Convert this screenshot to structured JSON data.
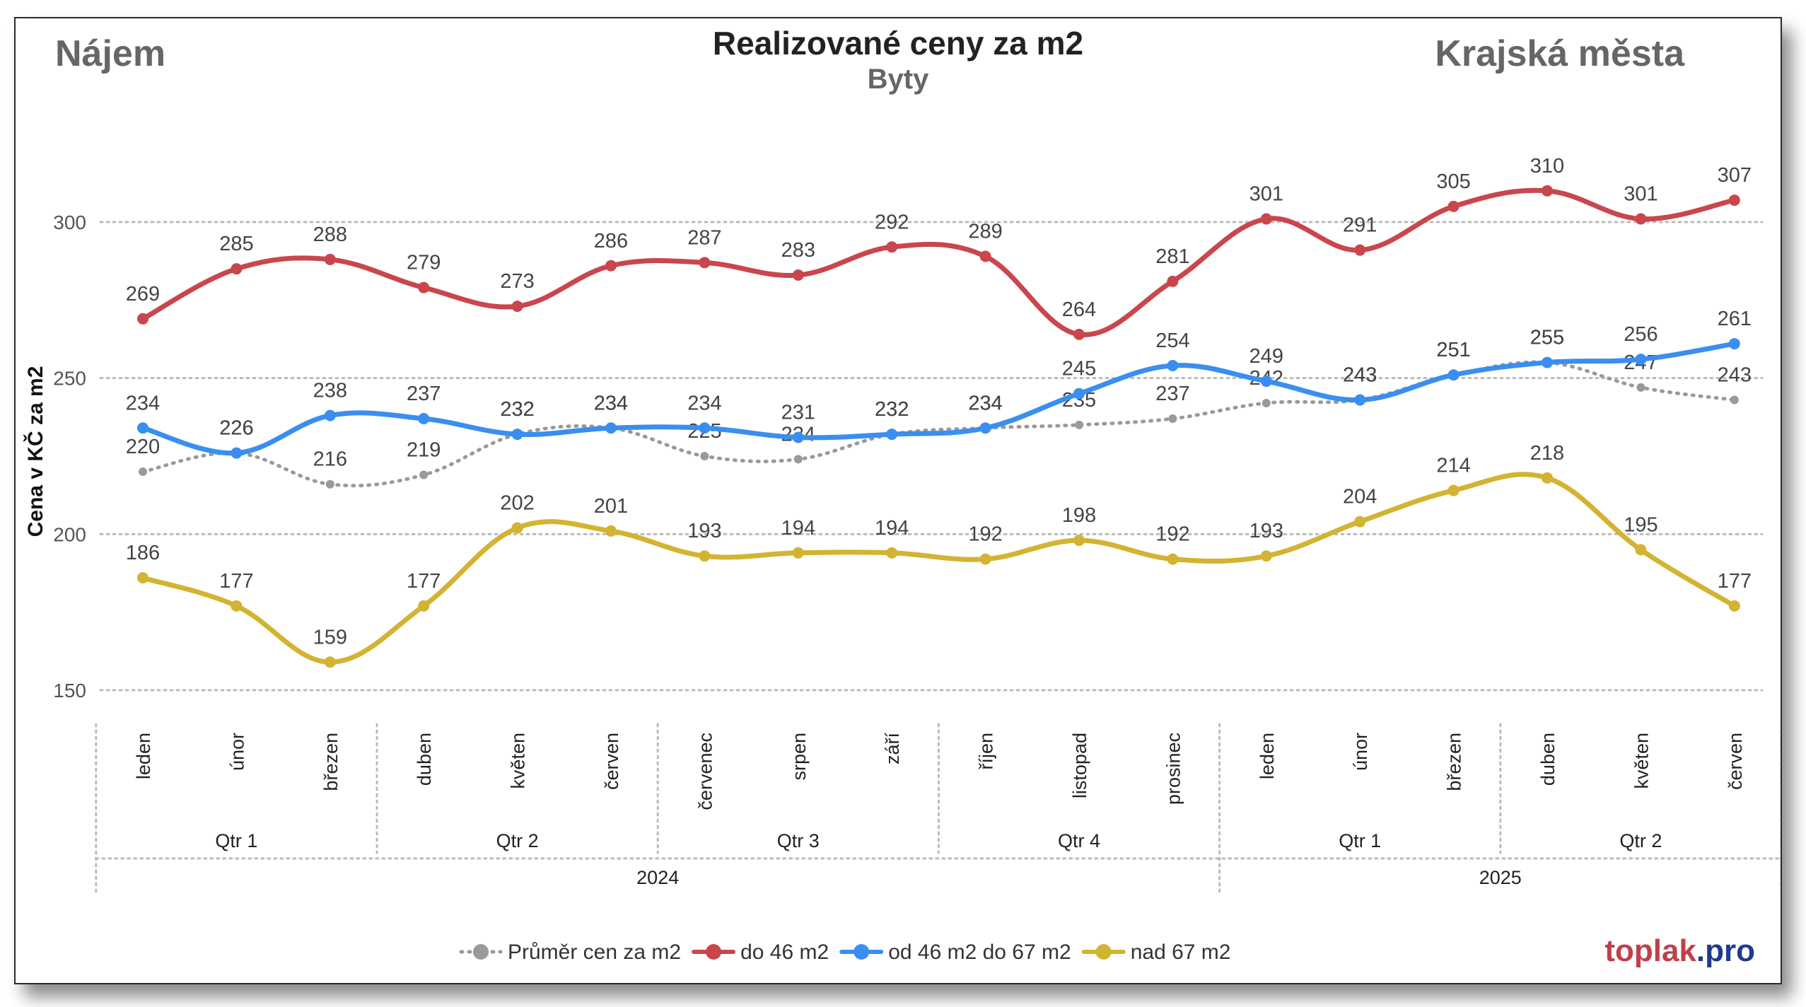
{
  "header": {
    "left_label": "Nájem",
    "title": "Realizované ceny za m2",
    "subtitle": "Byty",
    "right_label": "Krajská města"
  },
  "brand": {
    "name": "toplak",
    "tld": ".pro"
  },
  "colors": {
    "avg": "#999999",
    "small": "#c9464d",
    "medium": "#3a8ef0",
    "large": "#d3b332",
    "gridline": "#bbbbbb",
    "label": "#555555"
  },
  "chart_data": {
    "type": "line",
    "ylabel": "Cena v KČ za m2",
    "xlabel": "",
    "ylim": [
      150,
      312
    ],
    "yticks": [
      150,
      200,
      250,
      300
    ],
    "grid": true,
    "legend_position": "bottom",
    "categories": [
      "leden",
      "únor",
      "březen",
      "duben",
      "květen",
      "červen",
      "červenec",
      "srpen",
      "září",
      "říjen",
      "listopad",
      "prosinec",
      "leden",
      "únor",
      "březen",
      "duben",
      "květen",
      "červen"
    ],
    "quarters": [
      {
        "label": "Qtr 1",
        "months": 3
      },
      {
        "label": "Qtr 2",
        "months": 3
      },
      {
        "label": "Qtr 3",
        "months": 3
      },
      {
        "label": "Qtr 4",
        "months": 3
      },
      {
        "label": "Qtr 1",
        "months": 3
      },
      {
        "label": "Qtr 2",
        "months": 3
      }
    ],
    "years": [
      {
        "label": "2024",
        "months": 12
      },
      {
        "label": "2025",
        "months": 6
      }
    ],
    "series": [
      {
        "key": "avg",
        "name": "Průměr cen za m2",
        "style": "dotted",
        "values": [
          220,
          226,
          216,
          219,
          232,
          234,
          225,
          224,
          232,
          234,
          235,
          237,
          242,
          243,
          251,
          255,
          247,
          243
        ]
      },
      {
        "key": "small",
        "name": "do 46 m2",
        "style": "solid",
        "values": [
          269,
          285,
          288,
          279,
          273,
          286,
          287,
          283,
          292,
          289,
          264,
          281,
          301,
          291,
          305,
          310,
          301,
          307
        ]
      },
      {
        "key": "medium",
        "name": "od 46 m2 do 67 m2",
        "style": "solid",
        "values": [
          234,
          226,
          238,
          237,
          232,
          234,
          234,
          231,
          232,
          234,
          245,
          254,
          249,
          243,
          251,
          255,
          256,
          261
        ]
      },
      {
        "key": "large",
        "name": "nad 67 m2",
        "style": "solid",
        "values": [
          186,
          177,
          159,
          177,
          202,
          201,
          193,
          194,
          194,
          192,
          198,
          192,
          193,
          204,
          214,
          218,
          195,
          177
        ]
      }
    ]
  }
}
